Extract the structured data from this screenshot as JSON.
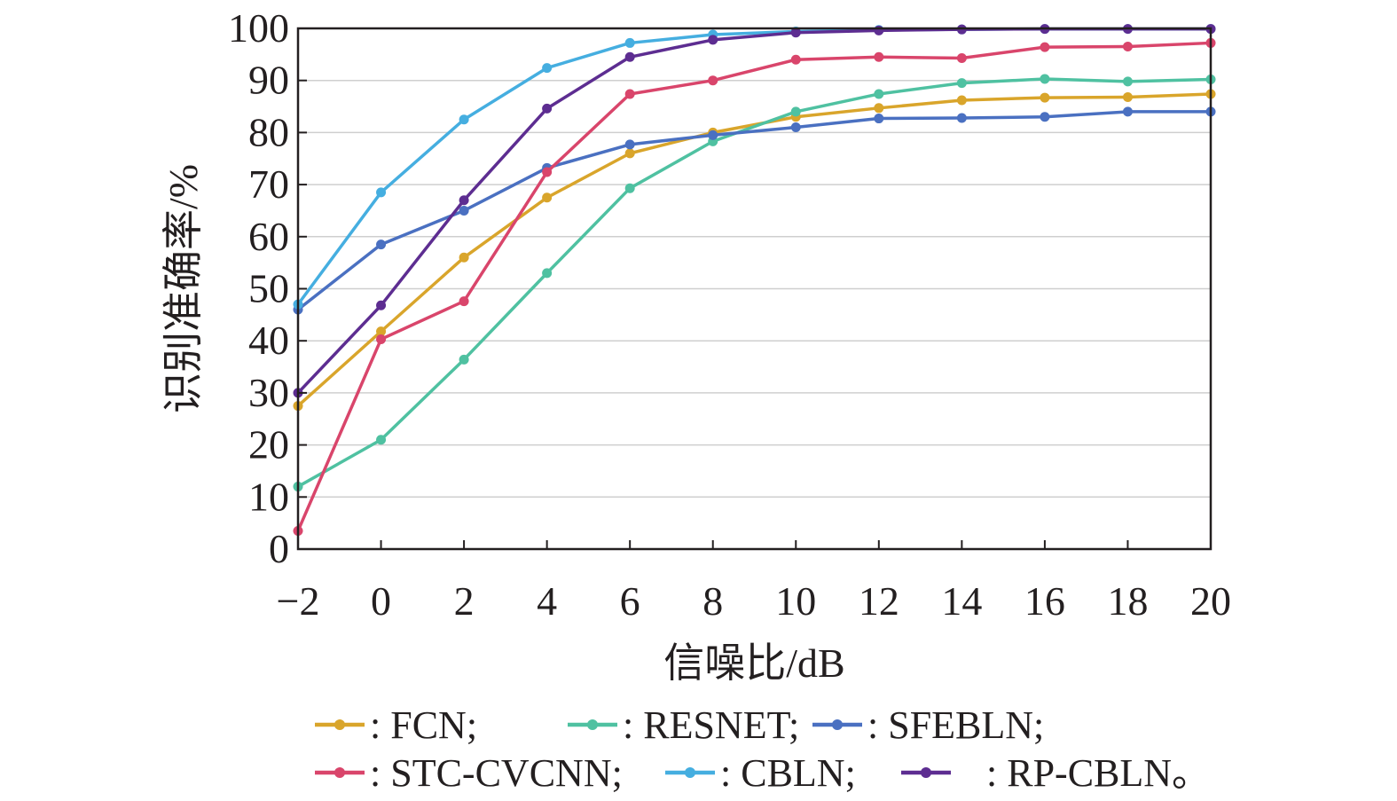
{
  "chart_data": {
    "type": "line",
    "xlabel": "信噪比/dB",
    "ylabel": "识别准确率/%",
    "x": [
      -2,
      0,
      2,
      4,
      6,
      8,
      10,
      12,
      14,
      16,
      18,
      20
    ],
    "x_tick_labels": [
      "−2",
      "0",
      "2",
      "4",
      "6",
      "8",
      "10",
      "12",
      "14",
      "16",
      "18",
      "20"
    ],
    "xlim": [
      -2,
      20
    ],
    "ylim": [
      0,
      100
    ],
    "y_ticks": [
      0,
      10,
      20,
      30,
      40,
      50,
      60,
      70,
      80,
      90,
      100
    ],
    "y_tick_labels": [
      "0",
      "10",
      "20",
      "30",
      "40",
      "50",
      "60",
      "70",
      "80",
      "90",
      "100"
    ],
    "grid": "horizontal",
    "legend_position": "bottom",
    "series": [
      {
        "name": "FCN",
        "legend_text": ": FCN;",
        "color": "#d9a52b",
        "values": [
          27.5,
          41.8,
          56,
          67.5,
          76,
          80,
          83,
          84.7,
          86.2,
          86.7,
          86.8,
          87.4
        ]
      },
      {
        "name": "RESNET",
        "legend_text": ": RESNET;",
        "color": "#4fc1a1",
        "values": [
          12,
          21,
          36.4,
          53,
          69.3,
          78.3,
          84,
          87.4,
          89.5,
          90.3,
          89.8,
          90.2
        ]
      },
      {
        "name": "SFEBLN",
        "legend_text": ": SFEBLN;",
        "color": "#4a70c1",
        "values": [
          46,
          58.5,
          65,
          73.2,
          77.7,
          79.5,
          81,
          82.7,
          82.8,
          83,
          84,
          84
        ]
      },
      {
        "name": "STC-CVCNN",
        "legend_text": ": STC-CVCNN;",
        "color": "#d9456b",
        "values": [
          3.5,
          40.3,
          47.6,
          72.4,
          87.4,
          90,
          94,
          94.5,
          94.3,
          96.4,
          96.5,
          97.2
        ]
      },
      {
        "name": "CBLN",
        "legend_text": ": CBLN;",
        "color": "#45aee0",
        "values": [
          47,
          68.5,
          82.5,
          92.4,
          97.2,
          98.8,
          99.4,
          99.7,
          99.8,
          99.9,
          99.9,
          99.9
        ]
      },
      {
        "name": "RP-CBLN",
        "legend_text": ": RP-CBLN。",
        "color": "#5d2d91",
        "values": [
          30,
          46.8,
          67,
          84.6,
          94.5,
          97.8,
          99.2,
          99.6,
          99.8,
          99.9,
          99.9,
          99.9
        ]
      }
    ]
  }
}
